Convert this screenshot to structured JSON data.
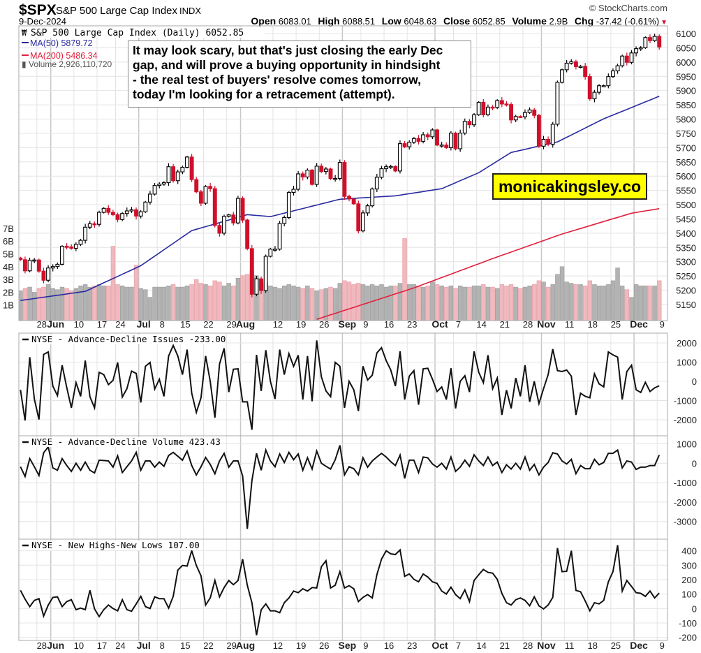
{
  "header": {
    "symbol": "$SPX",
    "name": "S&P 500 Large Cap Index",
    "exchange": "INDX",
    "date": "9-Dec-2024",
    "copyright": "© StockCharts.com",
    "open_label": "Open",
    "open": "6083.01",
    "high_label": "High",
    "high": "6088.51",
    "low_label": "Low",
    "low": "6048.63",
    "close_label": "Close",
    "close": "6052.85",
    "volume_label": "Volume",
    "volume": "2.9B",
    "chg_label": "Chg",
    "chg": "-37.42 (-0.61%)",
    "chg_icon": "down-triangle-icon"
  },
  "legend": {
    "price": "S&P 500 Large Cap Index (Daily) 6052.85",
    "ma50": "MA(50) 5879.72",
    "ma200": "MA(200) 5486.34",
    "volume": "Volume 2,926,110,720"
  },
  "annotation": {
    "lines": [
      "It may look scary, but that's just closing the early Dec",
      "gap, and will prove a buying opportunity in hindsight",
      "- the real test of buyers' resolve comes tomorrow,",
      "today I'm looking for a retracement (attempt)."
    ]
  },
  "brand_box": "monicakingsley.co",
  "colors": {
    "up": "#000000",
    "down": "#d0102b",
    "ma50": "#2a2aa0",
    "ma200": "#e0203c",
    "vol_up": "#b3b3b3",
    "vol_down": "#f1b9be",
    "grid": "#e4e4e4"
  },
  "chart_data": [
    {
      "type": "candlestick",
      "title": "S&P 500 Large Cap Index (Daily) 6052.85",
      "ylim": [
        5100,
        6120
      ],
      "y_ticks": [
        5150,
        5200,
        5250,
        5300,
        5350,
        5400,
        5450,
        5500,
        5550,
        5600,
        5650,
        5700,
        5750,
        5800,
        5850,
        5900,
        5950,
        6000,
        6050,
        6100
      ],
      "x_ticks": [
        {
          "label": "28",
          "i": 4
        },
        {
          "label": "Jun",
          "i": 7,
          "bold": true
        },
        {
          "label": "10",
          "i": 12
        },
        {
          "label": "17",
          "i": 17
        },
        {
          "label": "24",
          "i": 21
        },
        {
          "label": "Jul",
          "i": 26,
          "bold": true
        },
        {
          "label": "8",
          "i": 30
        },
        {
          "label": "15",
          "i": 35
        },
        {
          "label": "22",
          "i": 40
        },
        {
          "label": "29",
          "i": 45
        },
        {
          "label": "Aug",
          "i": 48,
          "bold": true
        },
        {
          "label": "12",
          "i": 55
        },
        {
          "label": "19",
          "i": 60
        },
        {
          "label": "26",
          "i": 65
        },
        {
          "label": "Sep",
          "i": 70,
          "bold": true
        },
        {
          "label": "9",
          "i": 74
        },
        {
          "label": "16",
          "i": 79
        },
        {
          "label": "23",
          "i": 84
        },
        {
          "label": "Oct",
          "i": 90,
          "bold": true
        },
        {
          "label": "7",
          "i": 94
        },
        {
          "label": "14",
          "i": 99
        },
        {
          "label": "21",
          "i": 104
        },
        {
          "label": "28",
          "i": 109
        },
        {
          "label": "Nov",
          "i": 113,
          "bold": true
        },
        {
          "label": "11",
          "i": 118
        },
        {
          "label": "18",
          "i": 123
        },
        {
          "label": "25",
          "i": 128
        },
        {
          "label": "Dec",
          "i": 133,
          "bold": true
        },
        {
          "label": "9",
          "i": 138
        }
      ],
      "close": [
        5307,
        5268,
        5305,
        5306,
        5267,
        5235,
        5278,
        5283,
        5291,
        5354,
        5352,
        5347,
        5361,
        5375,
        5421,
        5433,
        5431,
        5473,
        5487,
        5473,
        5465,
        5448,
        5469,
        5478,
        5482,
        5460,
        5475,
        5509,
        5537,
        5567,
        5572,
        5577,
        5633,
        5584,
        5615,
        5631,
        5667,
        5588,
        5545,
        5505,
        5564,
        5556,
        5427,
        5400,
        5459,
        5464,
        5436,
        5522,
        5446,
        5346,
        5186,
        5240,
        5199,
        5319,
        5344,
        5344,
        5434,
        5455,
        5543,
        5554,
        5608,
        5597,
        5621,
        5571,
        5635,
        5616,
        5625,
        5592,
        5592,
        5648,
        5529,
        5520,
        5503,
        5408,
        5471,
        5496,
        5555,
        5596,
        5626,
        5633,
        5634,
        5618,
        5714,
        5703,
        5719,
        5732,
        5722,
        5745,
        5738,
        5762,
        5709,
        5709,
        5700,
        5751,
        5696,
        5751,
        5792,
        5780,
        5815,
        5859,
        5815,
        5842,
        5841,
        5865,
        5853,
        5851,
        5797,
        5809,
        5808,
        5823,
        5832,
        5813,
        5705,
        5729,
        5712,
        5782,
        5929,
        5973,
        5996,
        6001,
        5984,
        5985,
        5949,
        5871,
        5894,
        5917,
        5917,
        5949,
        5969,
        5987,
        6021,
        5999,
        6032,
        6047,
        6050,
        6086,
        6075,
        6090,
        6052.85
      ],
      "volume_B": [
        2.1,
        2.3,
        2.4,
        2.0,
        2.3,
        2.4,
        2.6,
        2.3,
        2.2,
        2.4,
        2.3,
        2.1,
        2.3,
        2.5,
        2.6,
        2.4,
        2.5,
        2.6,
        2.5,
        2.5,
        5.6,
        2.6,
        2.5,
        2.4,
        2.4,
        4.1,
        2.3,
        2.2,
        1.6,
        2.4,
        2.4,
        2.4,
        2.5,
        2.6,
        2.4,
        2.4,
        2.5,
        2.6,
        3.0,
        2.7,
        2.6,
        2.5,
        2.9,
        2.8,
        2.5,
        2.7,
        2.5,
        3.1,
        3.3,
        3.4,
        3.7,
        3.3,
        3.0,
        2.7,
        2.5,
        2.4,
        2.3,
        2.5,
        2.6,
        2.5,
        2.4,
        2.3,
        2.5,
        2.3,
        2.1,
        2.2,
        2.3,
        2.4,
        2.3,
        2.7,
        2.9,
        2.8,
        2.6,
        2.7,
        2.6,
        2.5,
        2.6,
        2.5,
        2.6,
        2.4,
        2.5,
        2.5,
        2.7,
        6.2,
        2.6,
        2.6,
        2.5,
        2.4,
        2.5,
        2.8,
        2.6,
        2.5,
        2.4,
        2.5,
        2.3,
        2.5,
        2.4,
        2.4,
        2.5,
        2.5,
        2.6,
        2.4,
        2.4,
        2.3,
        2.6,
        2.5,
        2.6,
        2.4,
        2.3,
        2.4,
        2.5,
        2.6,
        2.9,
        2.8,
        2.4,
        2.6,
        3.4,
        4.0,
        2.8,
        2.7,
        2.6,
        2.6,
        2.5,
        2.9,
        2.6,
        2.5,
        2.5,
        2.6,
        2.9,
        3.9,
        2.5,
        2.2,
        1.6,
        2.6,
        2.5,
        2.5,
        2.5,
        2.5,
        2.9
      ],
      "volume_ticks": [
        "1B",
        "2B",
        "3B",
        "4B",
        "5B",
        "6B",
        "7B"
      ],
      "ma50_anchors": [
        [
          0,
          5164
        ],
        [
          14,
          5196
        ],
        [
          26,
          5286
        ],
        [
          37,
          5409
        ],
        [
          49,
          5465
        ],
        [
          54,
          5458
        ],
        [
          69,
          5519
        ],
        [
          81,
          5531
        ],
        [
          91,
          5556
        ],
        [
          99,
          5612
        ],
        [
          106,
          5683
        ],
        [
          116,
          5720
        ],
        [
          126,
          5801
        ],
        [
          138,
          5880
        ]
      ],
      "ma200_anchors": [
        [
          64,
          5098
        ],
        [
          85,
          5208
        ],
        [
          102,
          5311
        ],
        [
          117,
          5397
        ],
        [
          132,
          5470
        ],
        [
          138,
          5486
        ]
      ]
    },
    {
      "type": "line",
      "title": "NYSE - Advance-Decline Issues -233.00",
      "ylim": [
        -2600,
        2300
      ],
      "y_ticks": [
        2000,
        1000,
        0,
        -1000,
        -2000
      ],
      "values": [
        -440,
        -2040,
        1260,
        -920,
        -1990,
        1400,
        1530,
        -250,
        -740,
        840,
        -320,
        -1380,
        -70,
        -780,
        1080,
        -800,
        -1380,
        470,
        350,
        -170,
        50,
        980,
        -820,
        -380,
        530,
        410,
        -1100,
        780,
        980,
        -400,
        110,
        -780,
        1320,
        1870,
        1320,
        350,
        1650,
        -620,
        -1620,
        -860,
        1320,
        0,
        -1890,
        900,
        1720,
        -560,
        630,
        650,
        -1070,
        -1070,
        -2520,
        1380,
        -500,
        1620,
        0,
        -920,
        1650,
        350,
        1440,
        780,
        1360,
        -950,
        1320,
        -1040,
        2130,
        230,
        -500,
        -800,
        990,
        780,
        -1380,
        0,
        -440,
        -1550,
        780,
        70,
        320,
        1480,
        1750,
        1080,
        590,
        -250,
        1560,
        -950,
        270,
        560,
        -1220,
        650,
        680,
        110,
        -530,
        -290,
        -950,
        680,
        -1410,
        0,
        290,
        -560,
        1560,
        470,
        -70,
        1360,
        -380,
        170,
        -1750,
        -460,
        -1410,
        170,
        -780,
        840,
        -1070,
        0,
        -1160,
        -380,
        350,
        1680,
        560,
        510,
        590,
        270,
        -1750,
        -620,
        -780,
        -860,
        390,
        -130,
        -290,
        1530,
        1380,
        1260,
        -950,
        510,
        840,
        -440,
        -580,
        -50,
        -530,
        -340,
        -233
      ]
    },
    {
      "type": "line",
      "title": "NYSE - Advance-Decline Volume 423.43",
      "ylim": [
        -3500,
        1200
      ],
      "y_ticks": [
        1000,
        0,
        -1000,
        -2000,
        -3000
      ],
      "values": [
        -180,
        -680,
        240,
        -180,
        -630,
        540,
        840,
        -240,
        -360,
        240,
        -120,
        -420,
        0,
        -360,
        60,
        -360,
        -500,
        160,
        140,
        120,
        -200,
        380,
        -480,
        -180,
        120,
        560,
        -360,
        120,
        120,
        -200,
        60,
        -160,
        400,
        560,
        360,
        160,
        630,
        -120,
        -600,
        -180,
        300,
        -60,
        -540,
        120,
        510,
        -200,
        120,
        120,
        -660,
        -3380,
        -900,
        510,
        -360,
        680,
        120,
        -180,
        480,
        40,
        560,
        180,
        480,
        -360,
        280,
        -300,
        630,
        0,
        -160,
        -300,
        180,
        920,
        -600,
        -180,
        -280,
        -600,
        280,
        -200,
        120,
        320,
        510,
        320,
        80,
        -120,
        420,
        -780,
        160,
        160,
        -480,
        320,
        280,
        -40,
        -200,
        0,
        -300,
        320,
        -420,
        -200,
        160,
        -160,
        440,
        120,
        -120,
        320,
        -120,
        60,
        -480,
        -80,
        -300,
        0,
        -300,
        320,
        -360,
        -60,
        -600,
        -200,
        40,
        540,
        480,
        120,
        -40,
        200,
        -540,
        -120,
        -280,
        -280,
        200,
        -80,
        40,
        510,
        510,
        680,
        -240,
        120,
        60,
        -320,
        -200,
        -200,
        -120,
        -120,
        423.43
      ]
    },
    {
      "type": "line",
      "title": "NYSE - New Highs-New Lows 107.00",
      "ylim": [
        -220,
        480
      ],
      "y_ticks": [
        400,
        300,
        200,
        100,
        0,
        -100,
        -200
      ],
      "values": [
        126,
        65,
        13,
        56,
        68,
        -52,
        24,
        77,
        81,
        13,
        48,
        61,
        -8,
        3,
        -8,
        126,
        -3,
        -56,
        -8,
        24,
        0,
        -16,
        61,
        -8,
        -19,
        32,
        84,
        13,
        0,
        81,
        68,
        68,
        3,
        84,
        266,
        298,
        294,
        400,
        298,
        226,
        24,
        73,
        194,
        81,
        145,
        194,
        165,
        194,
        342,
        161,
        40,
        -185,
        -8,
        32,
        -16,
        -16,
        -29,
        40,
        73,
        121,
        110,
        137,
        121,
        145,
        142,
        290,
        331,
        142,
        161,
        255,
        142,
        158,
        137,
        48,
        77,
        97,
        73,
        234,
        342,
        400,
        379,
        374,
        406,
        223,
        239,
        202,
        185,
        239,
        218,
        185,
        174,
        121,
        100,
        148,
        97,
        68,
        129,
        48,
        194,
        234,
        271,
        250,
        245,
        202,
        105,
        40,
        24,
        61,
        73,
        56,
        19,
        81,
        19,
        -3,
        24,
        77,
        419,
        255,
        258,
        400,
        126,
        116,
        52,
        -16,
        40,
        32,
        56,
        185,
        255,
        439,
        121,
        194,
        153,
        110,
        105,
        84,
        121,
        73,
        107
      ]
    }
  ]
}
